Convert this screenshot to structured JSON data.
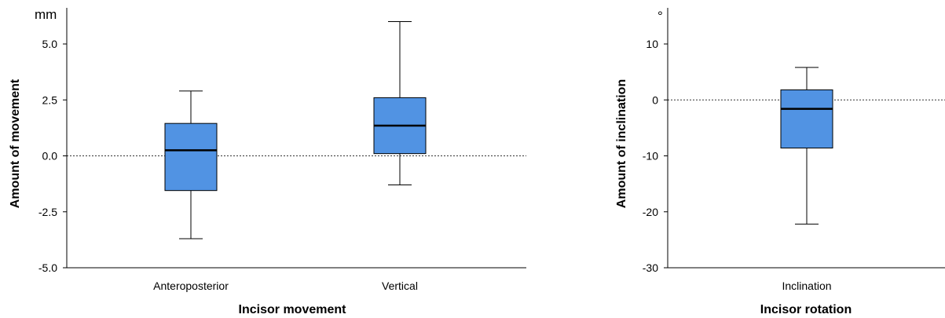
{
  "chart_data": [
    {
      "type": "boxplot",
      "unit": "mm",
      "xlabel": "Incisor movement",
      "ylabel": "Amount of movement",
      "ylim": [
        -5.0,
        6.0
      ],
      "yticks": [
        -5.0,
        -2.5,
        0.0,
        2.5,
        5.0
      ],
      "ytick_labels": [
        "-5.0",
        "-2.5",
        "0.0",
        "2.5",
        "5.0"
      ],
      "reference_line": 0,
      "box_color": "#5193e3",
      "categories": [
        "Anteroposterior",
        "Vertical"
      ],
      "boxes": [
        {
          "min": -3.7,
          "q1": -1.55,
          "median": 0.25,
          "q3": 1.45,
          "max": 2.9
        },
        {
          "min": -1.3,
          "q1": 0.1,
          "median": 1.35,
          "q3": 2.6,
          "max": 6.0
        }
      ]
    },
    {
      "type": "boxplot",
      "unit": "°",
      "xlabel": "Incisor rotation",
      "ylabel": "Amount of inclination",
      "ylim": [
        -30,
        15
      ],
      "yticks": [
        -30,
        -20,
        -10,
        0,
        10
      ],
      "ytick_labels": [
        "-30",
        "-20",
        "-10",
        "0",
        "10"
      ],
      "reference_line": 0,
      "box_color": "#5193e3",
      "categories": [
        "Inclination"
      ],
      "boxes": [
        {
          "min": -22.2,
          "q1": -8.6,
          "median": -1.6,
          "q3": 1.8,
          "max": 5.8
        }
      ]
    }
  ]
}
